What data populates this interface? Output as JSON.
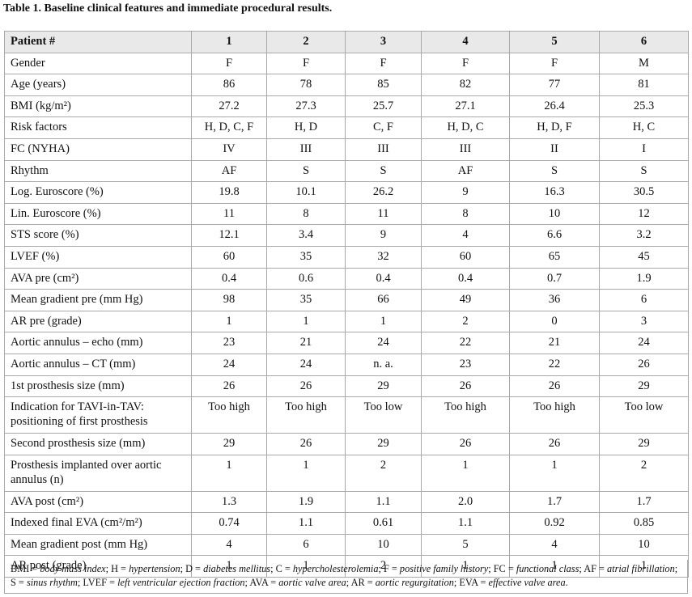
{
  "title": "Table 1. Baseline clinical features and immediate procedural results.",
  "table": {
    "header": [
      "Patient #",
      "1",
      "2",
      "3",
      "4",
      "5",
      "6"
    ],
    "rows": [
      [
        "Gender",
        "F",
        "F",
        "F",
        "F",
        "F",
        "M"
      ],
      [
        "Age (years)",
        "86",
        "78",
        "85",
        "82",
        "77",
        "81"
      ],
      [
        "BMI (kg/m²)",
        "27.2",
        "27.3",
        "25.7",
        "27.1",
        "26.4",
        "25.3"
      ],
      [
        "Risk factors",
        "H, D, C, F",
        "H, D",
        "C, F",
        "H, D, C",
        "H, D, F",
        "H, C"
      ],
      [
        "FC (NYHA)",
        "IV",
        "III",
        "III",
        "III",
        "II",
        "I"
      ],
      [
        "Rhythm",
        "AF",
        "S",
        "S",
        "AF",
        "S",
        "S"
      ],
      [
        "Log. Euroscore (%)",
        "19.8",
        "10.1",
        "26.2",
        "9",
        "16.3",
        "30.5"
      ],
      [
        "Lin. Euroscore (%)",
        "11",
        "8",
        "11",
        "8",
        "10",
        "12"
      ],
      [
        "STS score (%)",
        "12.1",
        "3.4",
        "9",
        "4",
        "6.6",
        "3.2"
      ],
      [
        "LVEF (%)",
        "60",
        "35",
        "32",
        "60",
        "65",
        "45"
      ],
      [
        "AVA pre (cm²)",
        "0.4",
        "0.6",
        "0.4",
        "0.4",
        "0.7",
        "1.9"
      ],
      [
        "Mean gradient pre (mm Hg)",
        "98",
        "35",
        "66",
        "49",
        "36",
        "6"
      ],
      [
        "AR pre (grade)",
        "1",
        "1",
        "1",
        "2",
        "0",
        "3"
      ],
      [
        "Aortic annulus – echo (mm)",
        "23",
        "21",
        "24",
        "22",
        "21",
        "24"
      ],
      [
        "Aortic annulus – CT (mm)",
        "24",
        "24",
        "n. a.",
        "23",
        "22",
        "26"
      ],
      [
        "1st prosthesis size (mm)",
        "26",
        "26",
        "29",
        "26",
        "26",
        "29"
      ],
      [
        "Indication for TAVI-in-TAV: positioning of first prosthesis",
        "Too high",
        "Too high",
        "Too low",
        "Too high",
        "Too high",
        "Too low"
      ],
      [
        "Second prosthesis size (mm)",
        "29",
        "26",
        "29",
        "26",
        "26",
        "29"
      ],
      [
        "Prosthesis implanted over aortic annulus (n)",
        "1",
        "1",
        "2",
        "1",
        "1",
        "2"
      ],
      [
        "AVA post (cm²)",
        "1.3",
        "1.9",
        "1.1",
        "2.0",
        "1.7",
        "1.7"
      ],
      [
        "Indexed  final EVA (cm²/m²)",
        "0.74",
        "1.1",
        "0.61",
        "1.1",
        "0.92",
        "0.85"
      ],
      [
        "Mean gradient post (mm Hg)",
        "4",
        "6",
        "10",
        "5",
        "4",
        "10"
      ],
      [
        "AR post (grade)",
        "1",
        "1",
        "2",
        "1",
        "1",
        "1"
      ]
    ]
  },
  "footnote": [
    "BMI = ",
    "body mass index",
    "; H = ",
    "hypertension",
    "; D = ",
    "diabetes mellitus",
    "; C = ",
    "hypercholesterolemia",
    "; F = ",
    "positive family history",
    "; FC = ",
    "functional class",
    "; AF = ",
    "atrial fibrillation",
    "; S = ",
    "sinus rhythm",
    "; LVEF = ",
    "left ventricular ejection fraction",
    "; AVA = ",
    "aortic valve area",
    "; AR = ",
    "aortic regurgitation",
    "; EVA = ",
    "effective valve area",
    "."
  ]
}
